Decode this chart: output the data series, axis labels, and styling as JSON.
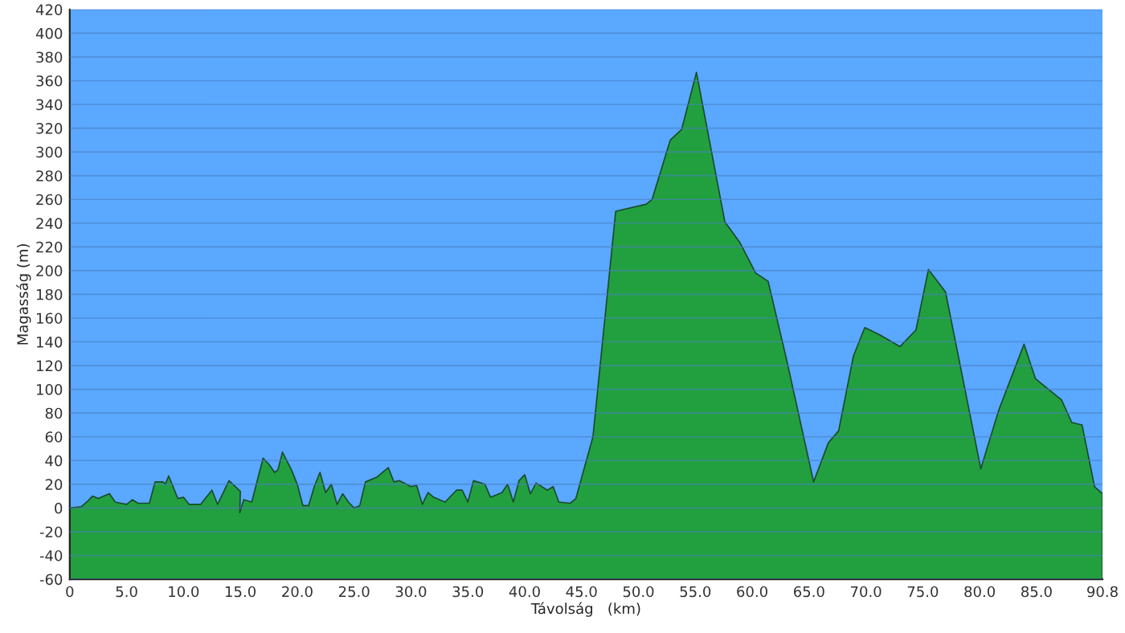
{
  "chart_data": {
    "type": "area",
    "xlabel": "Távolság   (km)",
    "ylabel": "Magasság (m)",
    "x": [
      0,
      1,
      1.5,
      2,
      2.5,
      3,
      3.5,
      4,
      4.5,
      5,
      5.5,
      6,
      7,
      7.5,
      8.2,
      8.4,
      8.7,
      9.5,
      10,
      10.5,
      11.5,
      12.5,
      13,
      14,
      15,
      14.95,
      15.3,
      16,
      17,
      17.5,
      18,
      18.3,
      18.7,
      19.5,
      20,
      20.5,
      21,
      21.5,
      22,
      22.5,
      23,
      23.5,
      24,
      24.5,
      25,
      25.5,
      26,
      27,
      28,
      28.5,
      29,
      30,
      30.5,
      31,
      31.5,
      32,
      33,
      34,
      34.5,
      35,
      35.5,
      36.5,
      37,
      38,
      38.5,
      39,
      39.5,
      40,
      40.5,
      41,
      42,
      42.5,
      43,
      44,
      44.5,
      46,
      48,
      50.7,
      51.2,
      52.8,
      53.8,
      55.1,
      57.6,
      58.9,
      60.3,
      61.4,
      63,
      65.4,
      66.7,
      67.6,
      68.9,
      69.9,
      71.2,
      73,
      74.4,
      75.5,
      77,
      80.1,
      81.7,
      83.9,
      84.9,
      87.2,
      88.1,
      89,
      90.1,
      90.8
    ],
    "series": [
      {
        "color": "#22a040",
        "values": [
          0,
          1,
          5,
          10,
          8,
          10,
          12,
          5,
          4,
          3,
          7,
          4,
          4,
          22,
          22,
          20,
          27,
          8,
          9,
          3,
          3,
          15,
          3,
          23,
          14,
          -4,
          7,
          5,
          42,
          37,
          30,
          32,
          47,
          32,
          20,
          2,
          2,
          18,
          30,
          13,
          20,
          3,
          12,
          5,
          0,
          2,
          22,
          26,
          34,
          22,
          23,
          18,
          19,
          3,
          13,
          9,
          5,
          15,
          15,
          5,
          23,
          20,
          9,
          13,
          20,
          5,
          23,
          28,
          12,
          21,
          15,
          18,
          5,
          4,
          8,
          60,
          250,
          256,
          260,
          310,
          319,
          367,
          241,
          224,
          198,
          191,
          126,
          22,
          55,
          65,
          128,
          152,
          146,
          136,
          150,
          201,
          182,
          33,
          83,
          138,
          109,
          91,
          72,
          70,
          18,
          12
        ]
      }
    ],
    "xlim": [
      0,
      90.8
    ],
    "xticks": [
      0,
      {
        "value": 5,
        "label": "5.0"
      },
      {
        "value": 10,
        "label": "10.0"
      },
      {
        "value": 15,
        "label": "15.0"
      },
      {
        "value": 20,
        "label": "20.0"
      },
      {
        "value": 25,
        "label": "25.0"
      },
      {
        "value": 30,
        "label": "30.0"
      },
      {
        "value": 35,
        "label": "35.0"
      },
      {
        "value": 40,
        "label": "40.0"
      },
      {
        "value": 45,
        "label": "45.0"
      },
      {
        "value": 50,
        "label": "50.0"
      },
      {
        "value": 55,
        "label": "55.0"
      },
      {
        "value": 60,
        "label": "60.0"
      },
      {
        "value": 65,
        "label": "65.0"
      },
      {
        "value": 70,
        "label": "70.0"
      },
      {
        "value": 75,
        "label": "75.0"
      },
      {
        "value": 80,
        "label": "80.0"
      },
      {
        "value": 85,
        "label": "85.0"
      },
      {
        "value": 90.8,
        "label": "90.8"
      }
    ],
    "ylim": [
      -60,
      420
    ],
    "yticks": [
      -60,
      -40,
      -20,
      0,
      20,
      40,
      60,
      80,
      100,
      120,
      140,
      160,
      180,
      200,
      220,
      240,
      260,
      280,
      300,
      320,
      340,
      360,
      380,
      400,
      420
    ],
    "grid": "y"
  }
}
